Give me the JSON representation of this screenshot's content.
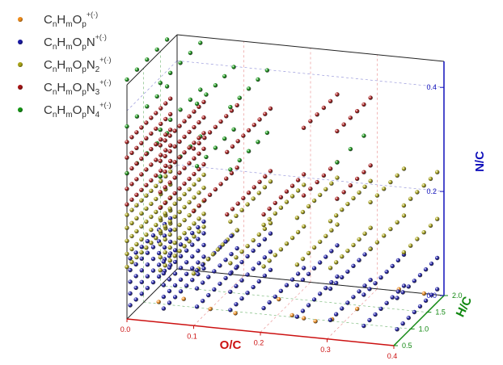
{
  "chart_data": {
    "type": "scatter",
    "projection": "3d",
    "grid": true,
    "legend_position": "top-left",
    "axes": {
      "x": {
        "label": "O/C",
        "range": [
          0,
          0.4
        ],
        "ticks": [
          "0.0",
          "0.1",
          "0.2",
          "0.3",
          "0.4"
        ],
        "color": "#cc1111"
      },
      "y": {
        "label": "H/C",
        "range": [
          0.5,
          2.0
        ],
        "ticks": [
          "0.5",
          "1.0",
          "1.5",
          "2.0"
        ],
        "color": "#118811"
      },
      "z": {
        "label": "N/C",
        "range": [
          0,
          0.45
        ],
        "ticks": [
          "0.0",
          "0.2",
          "0.4"
        ],
        "color": "#1111bb"
      }
    },
    "series": [
      {
        "name": "CnHmOp+(·)",
        "label_parts": [
          "C",
          "n",
          "H",
          "m",
          "O",
          "p",
          "",
          "+(·)"
        ],
        "color": "#f08c1a",
        "points": [
          [
            0.02,
            1.05,
            0
          ],
          [
            0.05,
            1.2,
            0
          ],
          [
            0.1,
            1.0,
            0
          ],
          [
            0.14,
            0.95,
            0
          ],
          [
            0.18,
            1.45,
            0
          ],
          [
            0.22,
            1.05,
            0
          ],
          [
            0.24,
            1.0,
            0
          ],
          [
            0.26,
            0.95,
            0
          ],
          [
            0.28,
            1.05,
            0
          ],
          [
            0.33,
            2.05,
            0
          ],
          [
            0.37,
            2.0,
            0
          ],
          [
            0.3,
            1.4,
            0
          ]
        ]
      },
      {
        "name": "CnHmOpN+(·)",
        "label_parts": [
          "C",
          "n",
          "H",
          "m",
          "O",
          "p",
          "N",
          "+(·)"
        ],
        "color": "#1a1aa6",
        "groups": [
          {
            "x": [
              0.0,
              0.05
            ],
            "y": [
              0.6,
              1.8
            ],
            "n": [
              5,
              8
            ],
            "z": [
              0.02,
              0.11
            ],
            "line": 0.02
          },
          {
            "x": [
              0.1,
              0.15
            ],
            "y": [
              0.6,
              1.8
            ],
            "n": [
              3,
              8
            ],
            "z": [
              0.03,
              0.1
            ],
            "line": 0.03
          },
          {
            "x": [
              0.2
            ],
            "y": [
              0.6,
              1.8
            ],
            "n": [
              1,
              8
            ],
            "z": [
              0.04,
              0.1
            ],
            "line": 0.04
          },
          {
            "x": [
              0.25,
              0.3
            ],
            "y": [
              0.6,
              1.8
            ],
            "n": [
              2,
              8
            ],
            "z": [
              0.03,
              0.09
            ],
            "line": 0.03
          },
          {
            "x": [
              0.35,
              0.4
            ],
            "y": [
              0.6,
              1.8
            ],
            "n": [
              2,
              8
            ],
            "z": [
              0.025,
              0.085
            ],
            "line": 0.025
          }
        ]
      },
      {
        "name": "CnHmOpN2+(·)",
        "label_parts": [
          "C",
          "n",
          "H",
          "m",
          "O",
          "p",
          "N",
          "2",
          "+(·)"
        ],
        "color": "#a8a316",
        "groups": [
          {
            "x": [
              0.0,
              0.05
            ],
            "y": [
              0.5,
              1.8
            ],
            "n": [
              5,
              10
            ],
            "z": [
              0.1,
              0.2
            ],
            "line": 0.1
          },
          {
            "x": [
              0.1
            ],
            "y": [
              0.5,
              1.8
            ],
            "n": [
              1,
              10
            ],
            "z": [
              0.1,
              0.2
            ],
            "line": 0.1
          },
          {
            "x": [
              0.15,
              0.2
            ],
            "y": [
              0.6,
              1.8
            ],
            "n": [
              2,
              8
            ],
            "z": [
              0.12,
              0.2
            ],
            "line": 0.12
          },
          {
            "x": [
              0.25,
              0.3
            ],
            "y": [
              0.6,
              1.8
            ],
            "n": [
              2,
              8
            ],
            "z": [
              0.13,
              0.22
            ],
            "line": 0.13
          },
          {
            "x": [
              0.35,
              0.4
            ],
            "y": [
              0.8,
              1.8
            ],
            "n": [
              2,
              6
            ],
            "z": [
              0.16,
              0.25
            ],
            "line": 0.16
          }
        ]
      },
      {
        "name": "CnHmOpN3+(·)",
        "label_parts": [
          "C",
          "n",
          "H",
          "m",
          "O",
          "p",
          "N",
          "3",
          "+(·)"
        ],
        "color": "#a61414",
        "groups": [
          {
            "x": [
              0.0,
              0.05
            ],
            "y": [
              0.5,
              1.8
            ],
            "n": [
              5,
              10
            ],
            "z": [
              0.22,
              0.34
            ],
            "line": 0.22
          },
          {
            "x": [
              0.1,
              0.15
            ],
            "y": [
              0.5,
              1.8
            ],
            "n": [
              2,
              9
            ],
            "z": [
              0.22,
              0.34
            ],
            "line": 0.22
          },
          {
            "x": [
              0.2
            ],
            "y": [
              0.6,
              1.8
            ],
            "n": [
              1,
              8
            ],
            "z": [
              0.22,
              0.36
            ],
            "line": 0.22
          },
          {
            "x": [
              0.25,
              0.3
            ],
            "y": [
              0.8,
              1.8
            ],
            "n": [
              2,
              6
            ],
            "z": [
              0.25,
              0.38
            ],
            "line": 0.25
          }
        ]
      },
      {
        "name": "CnHmOpN4+(·)",
        "label_parts": [
          "C",
          "n",
          "H",
          "m",
          "O",
          "p",
          "N",
          "4",
          "+(·)"
        ],
        "color": "#149614",
        "groups": [
          {
            "x": [
              0.0,
              0.05
            ],
            "y": [
              0.5,
              1.7
            ],
            "n": [
              3,
              5
            ],
            "z": [
              0.28,
              0.46
            ],
            "line": 0.28
          },
          {
            "x": [
              0.1,
              0.15
            ],
            "y": [
              0.6,
              1.7
            ],
            "n": [
              2,
              5
            ],
            "z": [
              0.3,
              0.42
            ],
            "line": 0.3
          },
          {
            "x": [
              0.3
            ],
            "y": [
              0.8,
              1.6
            ],
            "n": [
              1,
              3
            ],
            "z": [
              0.32,
              0.42
            ],
            "line": 0.32
          }
        ]
      }
    ]
  }
}
